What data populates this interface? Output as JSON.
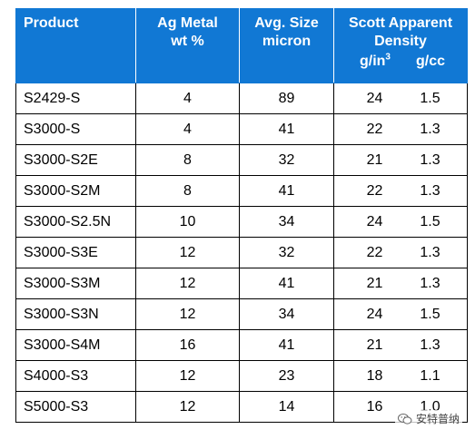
{
  "table": {
    "headers": {
      "product": "Product",
      "ag_metal_line1": "Ag Metal",
      "ag_metal_line2": "wt %",
      "avg_size_line1": "Avg. Size",
      "avg_size_line2": "micron",
      "density_line1": "Scott Apparent",
      "density_line2": "Density",
      "unit_in_base": "g/in",
      "unit_in_exp": "3",
      "unit_cc": "g/cc"
    },
    "rows": [
      {
        "product": "S2429-S",
        "ag": "4",
        "size": "89",
        "g_in3": "24",
        "g_cc": "1.5"
      },
      {
        "product": "S3000-S",
        "ag": "4",
        "size": "41",
        "g_in3": "22",
        "g_cc": "1.3"
      },
      {
        "product": "S3000-S2E",
        "ag": "8",
        "size": "32",
        "g_in3": "21",
        "g_cc": "1.3"
      },
      {
        "product": "S3000-S2M",
        "ag": "8",
        "size": "41",
        "g_in3": "22",
        "g_cc": "1.3"
      },
      {
        "product": "S3000-S2.5N",
        "ag": "10",
        "size": "34",
        "g_in3": "24",
        "g_cc": "1.5"
      },
      {
        "product": "S3000-S3E",
        "ag": "12",
        "size": "32",
        "g_in3": "22",
        "g_cc": "1.3"
      },
      {
        "product": "S3000-S3M",
        "ag": "12",
        "size": "41",
        "g_in3": "21",
        "g_cc": "1.3"
      },
      {
        "product": "S3000-S3N",
        "ag": "12",
        "size": "34",
        "g_in3": "24",
        "g_cc": "1.5"
      },
      {
        "product": "S3000-S4M",
        "ag": "16",
        "size": "41",
        "g_in3": "21",
        "g_cc": "1.3"
      },
      {
        "product": "S4000-S3",
        "ag": "12",
        "size": "23",
        "g_in3": "18",
        "g_cc": "1.1"
      },
      {
        "product": "S5000-S3",
        "ag": "12",
        "size": "14",
        "g_in3": "16",
        "g_cc": "1.0"
      }
    ]
  },
  "colors": {
    "header_bg": "#1178d4",
    "header_text": "#ffffff",
    "grid": "#000000"
  },
  "watermark": {
    "text": "安特普纳",
    "icon": "wechat-logo-icon"
  }
}
